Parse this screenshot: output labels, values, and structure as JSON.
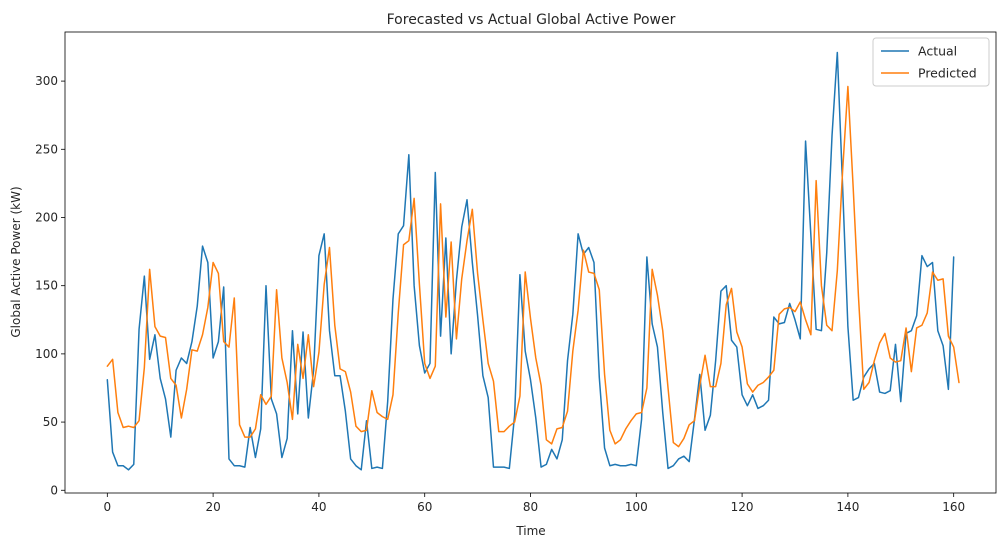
{
  "chart_data": {
    "type": "line",
    "title": "Forecasted vs Actual Global Active Power",
    "xlabel": "Time",
    "ylabel": "Global Active Power (kW)",
    "xlim": [
      -8,
      168
    ],
    "ylim": [
      -2,
      336
    ],
    "xticks": [
      0,
      20,
      40,
      60,
      80,
      100,
      120,
      140,
      160
    ],
    "yticks": [
      0,
      50,
      100,
      150,
      200,
      250,
      300
    ],
    "legend": {
      "position": "upper right"
    },
    "grid": false,
    "series": [
      {
        "name": "Actual",
        "color": "#1f77b4",
        "values": [
          81,
          28,
          18,
          18,
          15,
          19,
          118,
          157,
          96,
          114,
          82,
          67,
          39,
          88,
          97,
          93,
          109,
          135,
          179,
          167,
          97,
          109,
          149,
          23,
          18,
          18,
          17,
          46,
          24,
          45,
          150,
          67,
          56,
          24,
          38,
          117,
          56,
          116,
          53,
          88,
          172,
          188,
          117,
          84,
          84,
          58,
          23,
          18,
          15,
          51,
          16,
          17,
          16,
          65,
          140,
          188,
          194,
          246,
          150,
          106,
          86,
          93,
          233,
          113,
          185,
          100,
          154,
          193,
          213,
          167,
          128,
          84,
          68,
          17,
          17,
          17,
          16,
          55,
          158,
          102,
          81,
          53,
          17,
          19,
          30,
          23,
          37,
          95,
          129,
          188,
          173,
          178,
          167,
          83,
          31,
          18,
          19,
          18,
          18,
          19,
          18,
          52,
          171,
          122,
          105,
          57,
          16,
          18,
          23,
          25,
          21,
          52,
          85,
          44,
          55,
          95,
          146,
          150,
          110,
          105,
          70,
          62,
          70,
          60,
          62,
          66,
          127,
          122,
          123,
          137,
          125,
          111,
          256,
          187,
          118,
          117,
          174,
          260,
          321,
          223,
          120,
          66,
          68,
          83,
          89,
          93,
          72,
          71,
          73,
          107,
          65,
          115,
          117,
          128,
          172,
          164,
          167,
          117,
          106,
          74,
          171
        ]
      },
      {
        "name": "Predicted",
        "color": "#ff7f0e",
        "values": [
          91,
          96,
          57,
          46,
          47,
          46,
          51,
          90,
          162,
          120,
          113,
          112,
          82,
          77,
          53,
          74,
          103,
          102,
          114,
          134,
          167,
          159,
          109,
          105,
          141,
          48,
          39,
          39,
          45,
          70,
          63,
          69,
          147,
          97,
          79,
          52,
          107,
          82,
          114,
          76,
          101,
          151,
          178,
          121,
          89,
          87,
          72,
          47,
          43,
          44,
          73,
          57,
          54,
          52,
          70,
          130,
          180,
          183,
          214,
          151,
          93,
          82,
          91,
          210,
          127,
          182,
          111,
          155,
          183,
          206,
          159,
          125,
          93,
          80,
          43,
          43,
          47,
          50,
          69,
          160,
          126,
          97,
          77,
          37,
          34,
          45,
          46,
          58,
          102,
          132,
          176,
          160,
          159,
          147,
          85,
          44,
          34,
          37,
          45,
          51,
          56,
          57,
          75,
          162,
          143,
          117,
          75,
          35,
          32,
          38,
          48,
          51,
          77,
          99,
          76,
          76,
          93,
          136,
          148,
          116,
          105,
          78,
          72,
          77,
          79,
          83,
          88,
          129,
          133,
          134,
          131,
          138,
          125,
          114,
          227,
          150,
          121,
          117,
          161,
          234,
          296,
          222,
          142,
          74,
          79,
          95,
          108,
          115,
          97,
          94,
          95,
          119,
          87,
          119,
          121,
          130,
          160,
          154,
          155,
          113,
          105,
          79
        ]
      }
    ]
  }
}
